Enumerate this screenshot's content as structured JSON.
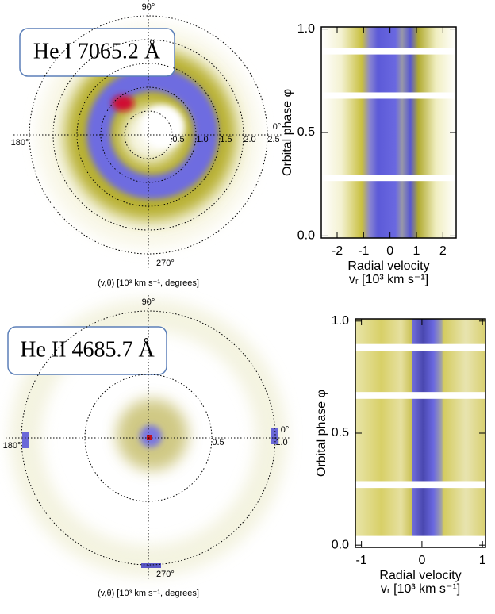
{
  "chart_data": [
    {
      "type": "doppler-tomogram",
      "title": "He I 7065.2 Å",
      "xlabel": "(v,θ) [10³ km s⁻¹, degrees]",
      "angle_labels": [
        "0°",
        "90°",
        "180°",
        "270°"
      ],
      "rlim": [
        0,
        2.5
      ],
      "rticks": [
        0.5,
        {
          "value": 1,
          "label": "1.0"
        },
        1.5,
        {
          "value": 2,
          "label": "2.0"
        },
        2.5
      ]
    },
    {
      "type": "trailed-spectrum",
      "xlabel": "Radial velocity",
      "xlabel2": "vᵣ [10³ km s⁻¹]",
      "ylabel": "Orbital phase φ",
      "xlim": [
        -2.6,
        2.5
      ],
      "xticks": [
        -2,
        -1,
        0,
        1,
        2
      ],
      "ylim": [
        -0.01,
        1.01
      ],
      "yticks": [
        {
          "value": 0,
          "label": "0.0"
        },
        0.5,
        {
          "value": 1,
          "label": "1.0"
        }
      ]
    },
    {
      "type": "doppler-tomogram",
      "title": "He II 4685.7 Å",
      "xlabel": "(v,θ) [10³ km s⁻¹, degrees]",
      "angle_labels": [
        "0°",
        "90°",
        "180°",
        "270°"
      ],
      "rlim": [
        0,
        1
      ],
      "rticks": [
        0.5,
        {
          "value": 1,
          "label": "1.0"
        }
      ]
    },
    {
      "type": "trailed-spectrum",
      "xlabel": "Radial velocity",
      "xlabel2": "vᵣ [10³ km s⁻¹]",
      "ylabel": "Orbital phase φ",
      "xlim": [
        -1.1,
        1.05
      ],
      "xticks": [
        -1,
        0,
        1
      ],
      "ylim": [
        -0.01,
        1.01
      ],
      "yticks": [
        {
          "value": 0,
          "label": "0.0"
        },
        0.5,
        {
          "value": 1,
          "label": "1.0"
        }
      ]
    }
  ]
}
